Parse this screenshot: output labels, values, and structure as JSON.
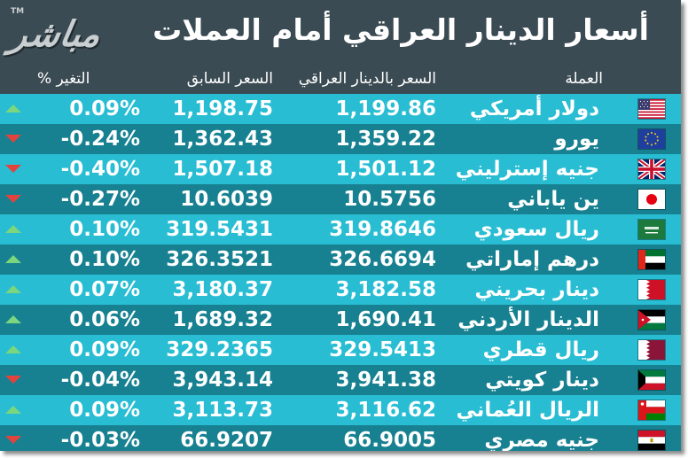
{
  "header": {
    "title": "أسعار الدينار العراقي أمام العملات",
    "logo_text": "مباشر",
    "logo_tm": "TM"
  },
  "columns": {
    "currency": "العملة",
    "rate": "السعر بالدينار العراقي",
    "previous": "السعر السابق",
    "change": "التغير %"
  },
  "colors": {
    "row_light": "#28bdd3",
    "row_dark": "#178191",
    "up": "#7bd67e",
    "down": "#e2443d",
    "background": "#3b4b53"
  },
  "rows": [
    {
      "currency": "دولار أمريكي",
      "rate": "1,199.86",
      "previous": "1,198.75",
      "change": "0.09%",
      "direction": "up",
      "flag": "us-flag-icon"
    },
    {
      "currency": "يورو",
      "rate": "1,359.22",
      "previous": "1,362.43",
      "change": "-0.24%",
      "direction": "down",
      "flag": "eu-flag-icon"
    },
    {
      "currency": "جنيه إسترليني",
      "rate": "1,501.12",
      "previous": "1,507.18",
      "change": "-0.40%",
      "direction": "down",
      "flag": "uk-flag-icon"
    },
    {
      "currency": "ين ياباني",
      "rate": "10.5756",
      "previous": "10.6039",
      "change": "-0.27%",
      "direction": "down",
      "flag": "japan-flag-icon"
    },
    {
      "currency": "ريال سعودي",
      "rate": "319.8646",
      "previous": "319.5431",
      "change": "0.10%",
      "direction": "up",
      "flag": "saudi-flag-icon"
    },
    {
      "currency": "درهم إماراتي",
      "rate": "326.6694",
      "previous": "326.3521",
      "change": "0.10%",
      "direction": "up",
      "flag": "uae-flag-icon"
    },
    {
      "currency": "دينار بحريني",
      "rate": "3,182.58",
      "previous": "3,180.37",
      "change": "0.07%",
      "direction": "up",
      "flag": "bahrain-flag-icon"
    },
    {
      "currency": "الدينار الأردني",
      "rate": "1,690.41",
      "previous": "1,689.32",
      "change": "0.06%",
      "direction": "up",
      "flag": "jordan-flag-icon"
    },
    {
      "currency": "ريال قطري",
      "rate": "329.5413",
      "previous": "329.2365",
      "change": "0.09%",
      "direction": "up",
      "flag": "qatar-flag-icon"
    },
    {
      "currency": "دينار كويتي",
      "rate": "3,941.38",
      "previous": "3,943.14",
      "change": "-0.04%",
      "direction": "down",
      "flag": "kuwait-flag-icon"
    },
    {
      "currency": "الريال العُماني",
      "rate": "3,116.62",
      "previous": "3,113.73",
      "change": "0.09%",
      "direction": "up",
      "flag": "oman-flag-icon"
    },
    {
      "currency": "جنيه مصري",
      "rate": "66.9005",
      "previous": "66.9207",
      "change": "-0.03%",
      "direction": "down",
      "flag": "egypt-flag-icon"
    }
  ]
}
